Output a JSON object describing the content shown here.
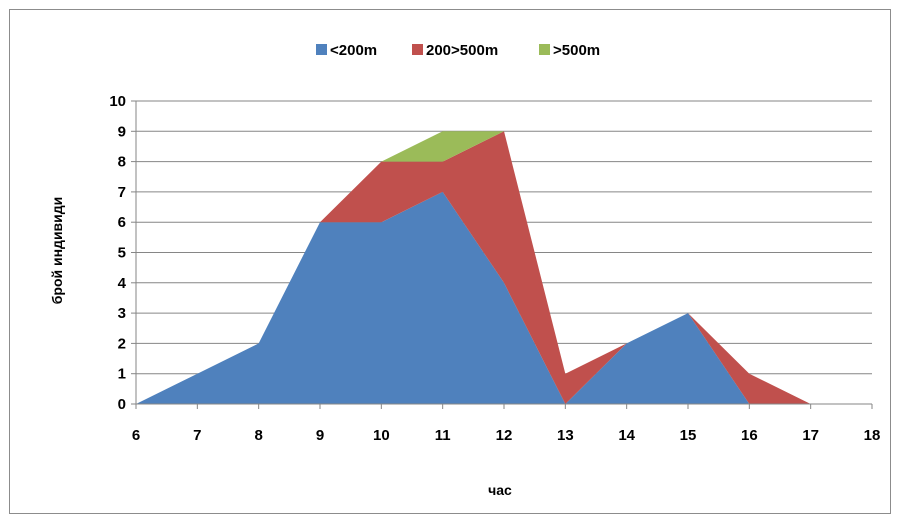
{
  "chart_data": {
    "type": "area",
    "stacked": true,
    "title": "",
    "xlabel": "час",
    "ylabel": "брой индивиди",
    "x": [
      6,
      7,
      8,
      9,
      10,
      11,
      12,
      13,
      14,
      15,
      16,
      17
    ],
    "xlim": [
      6,
      18
    ],
    "x_ticks": [
      "6",
      "7",
      "8",
      "9",
      "10",
      "11",
      "12",
      "13",
      "14",
      "15",
      "16",
      "17",
      "18"
    ],
    "ylim": [
      0,
      10
    ],
    "y_ticks": [
      "0",
      "1",
      "2",
      "3",
      "4",
      "5",
      "6",
      "7",
      "8",
      "9",
      "10"
    ],
    "grid": true,
    "legend_position": "top",
    "series": [
      {
        "name": "<200m",
        "color": "#4f81bd",
        "values": [
          0,
          1,
          2,
          6,
          6,
          7,
          4,
          0,
          2,
          3,
          0,
          0
        ]
      },
      {
        "name": "200>500m",
        "color": "#c0504d",
        "values": [
          0,
          0,
          0,
          0,
          2,
          1,
          5,
          1,
          0,
          0,
          1,
          0
        ]
      },
      {
        "name": ">500m",
        "color": "#9bbb59",
        "values": [
          0,
          0,
          0,
          0,
          0,
          1,
          0,
          0,
          0,
          0,
          0,
          0
        ]
      }
    ]
  }
}
